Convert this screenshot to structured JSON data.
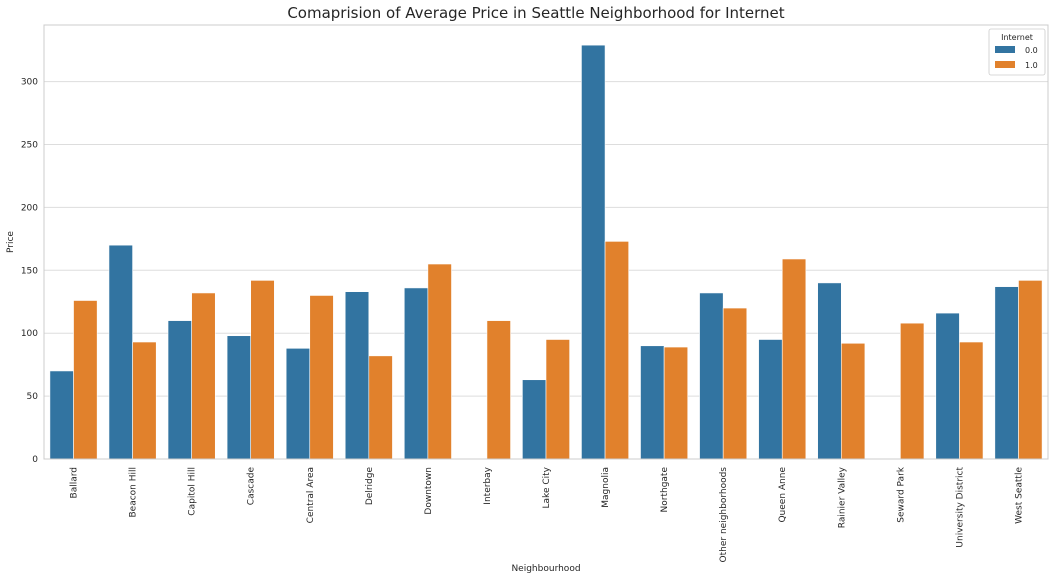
{
  "chart_data": {
    "type": "bar",
    "title": "Comaprision of Average Price in Seattle Neighborhood for Internet",
    "xlabel": "Neighbourhood",
    "ylabel": "Price",
    "categories": [
      "Ballard",
      "Beacon Hill",
      "Capitol Hill",
      "Cascade",
      "Central Area",
      "Delridge",
      "Downtown",
      "Interbay",
      "Lake City",
      "Magnolia",
      "Northgate",
      "Other neighborhoods",
      "Queen Anne",
      "Rainier Valley",
      "Seward Park",
      "University District",
      "West Seattle"
    ],
    "series": [
      {
        "name": "0.0",
        "color": "#3274a1",
        "values": [
          70,
          170,
          110,
          98,
          88,
          133,
          136,
          null,
          63,
          329,
          90,
          132,
          95,
          140,
          null,
          116,
          137
        ]
      },
      {
        "name": "1.0",
        "color": "#e1812c",
        "values": [
          126,
          93,
          132,
          142,
          130,
          82,
          155,
          110,
          95,
          173,
          89,
          120,
          159,
          92,
          108,
          93,
          142
        ]
      }
    ],
    "ylim": [
      0,
      345
    ],
    "yticks": [
      0,
      50,
      100,
      150,
      200,
      250,
      300
    ],
    "grid": true,
    "legend": {
      "title": "Internet",
      "position": "top-right"
    }
  }
}
